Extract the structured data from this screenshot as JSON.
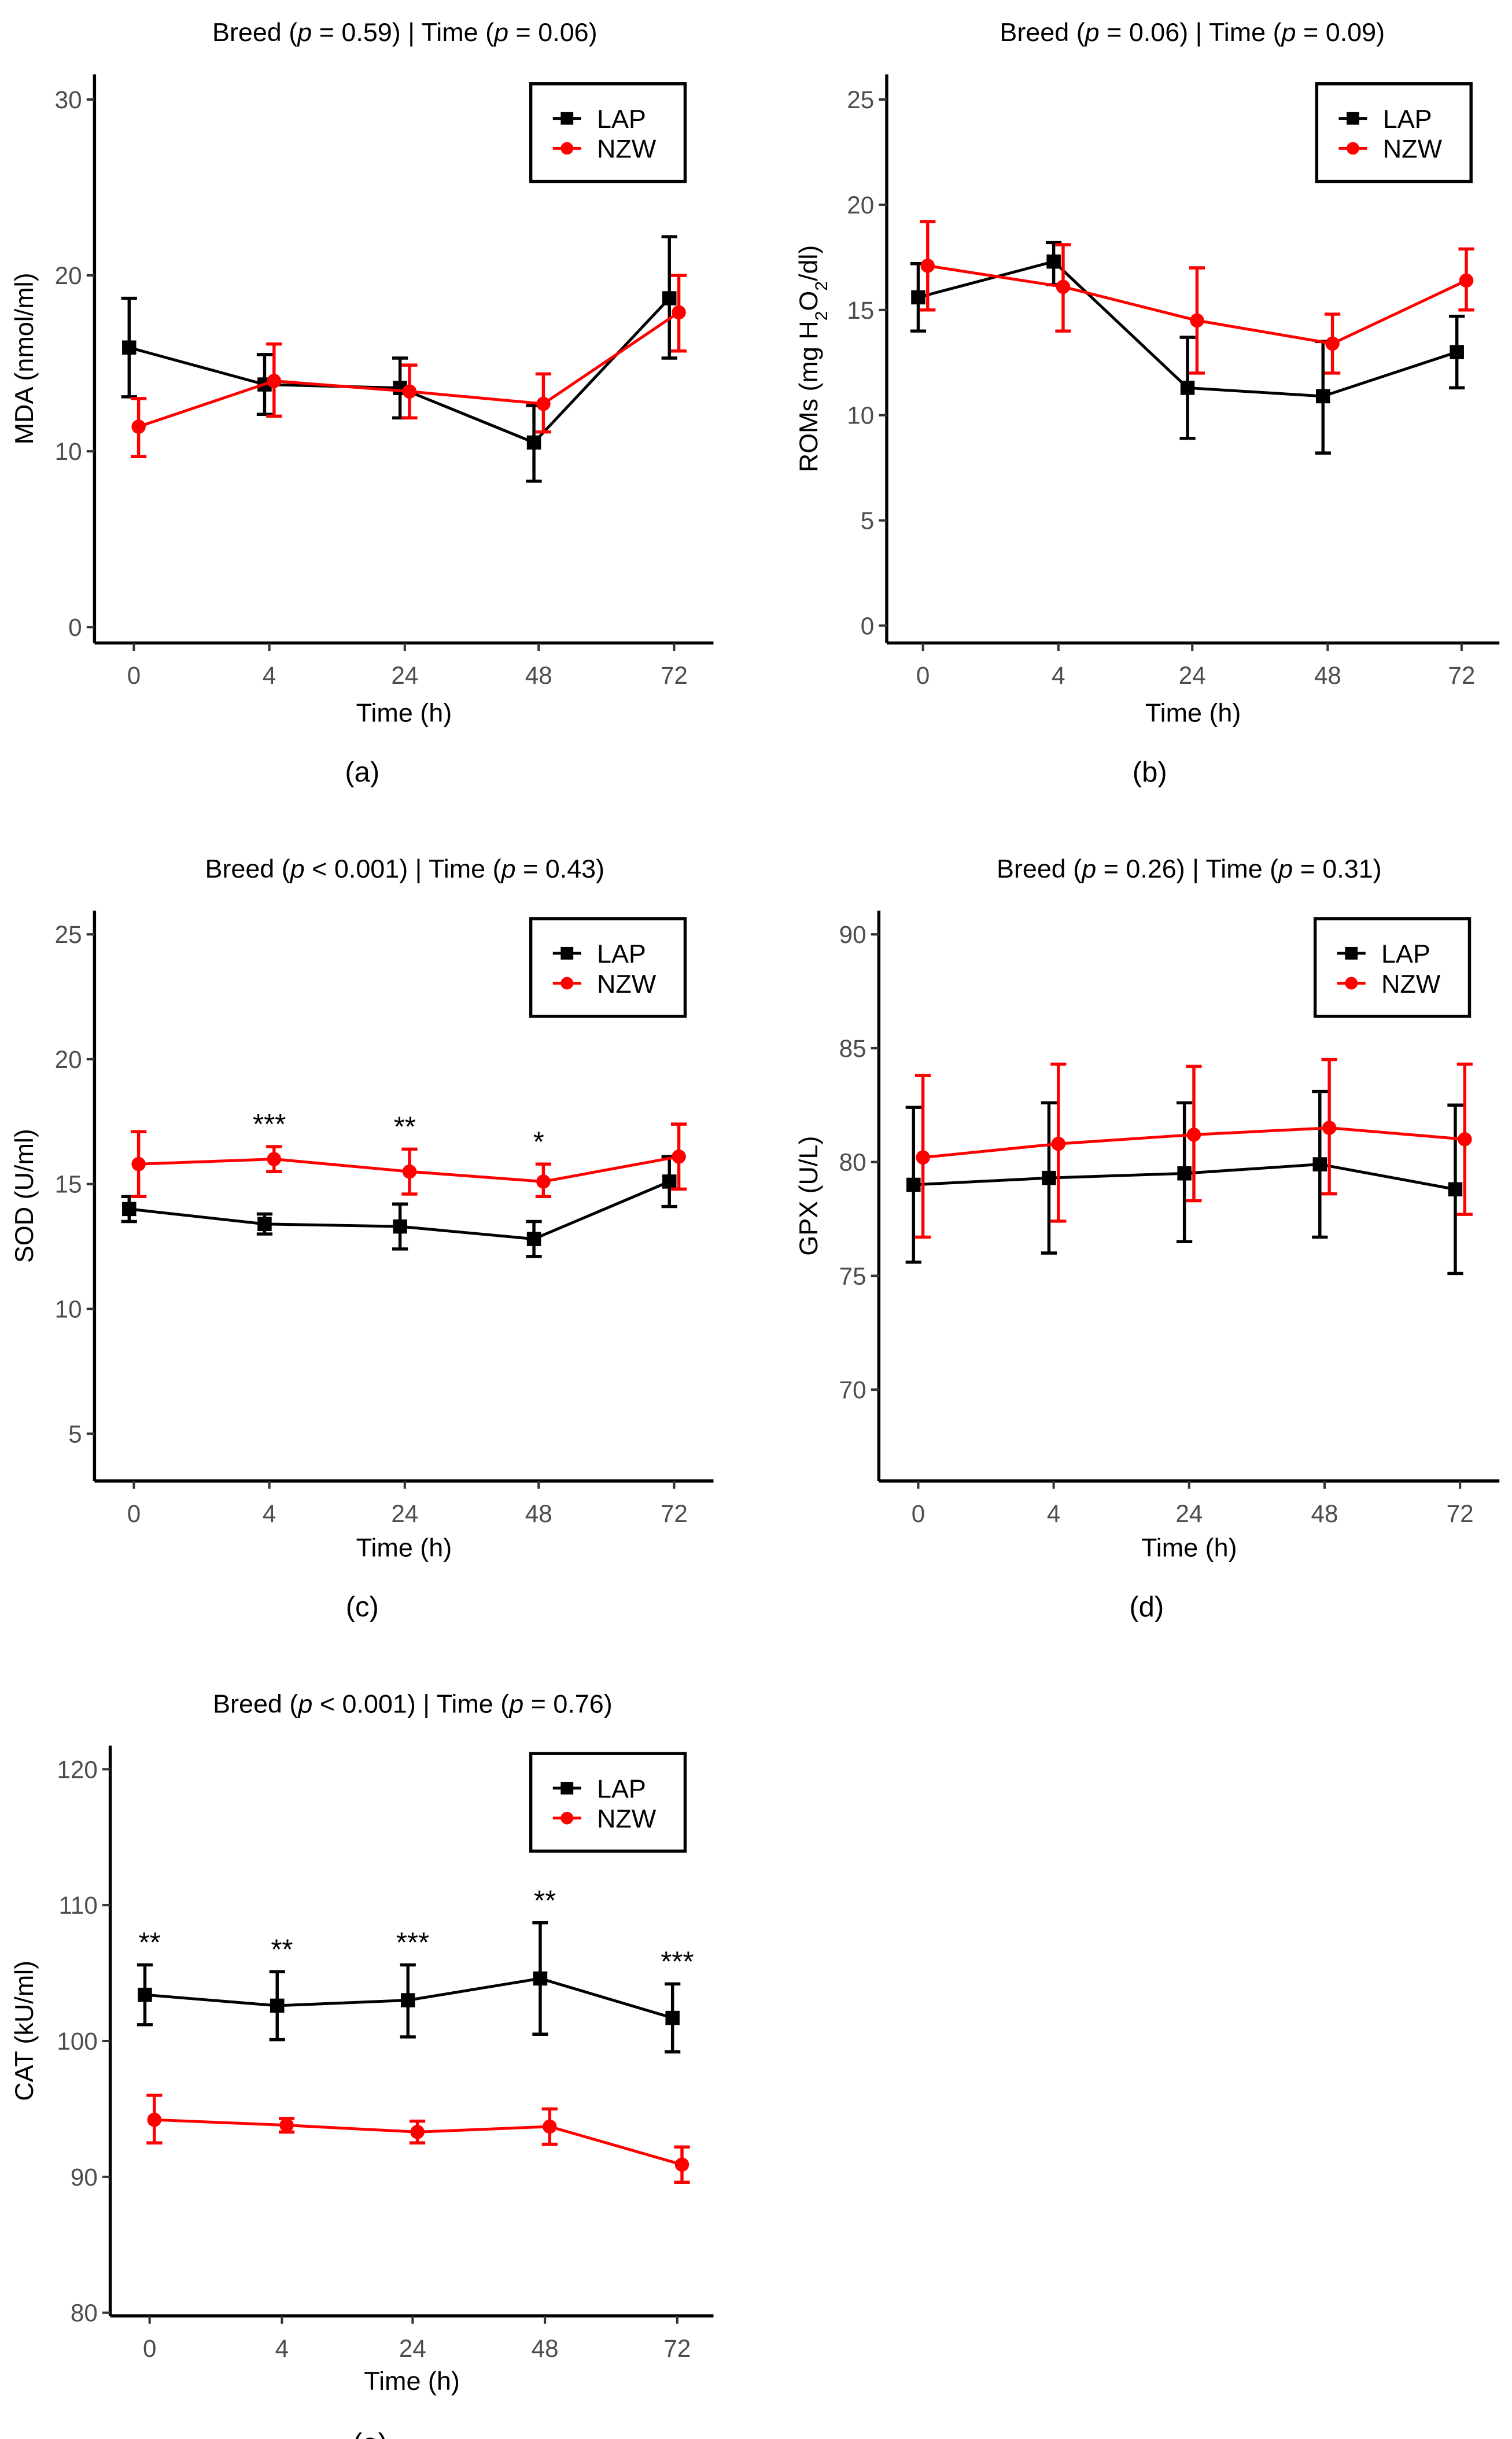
{
  "colors": {
    "LAP": "#000000",
    "NZW": "#ff0000",
    "tick_text": "#4d4d4d"
  },
  "chart_data": [
    {
      "type": "line",
      "panel_label": "(a)",
      "title_parts": [
        {
          "t": "Breed ("
        },
        {
          "t": "p",
          "i": true
        },
        {
          "t": " = 0.59) | Time ("
        },
        {
          "t": "p",
          "i": true
        },
        {
          "t": " = 0.06)"
        }
      ],
      "ylabel_parts": [
        {
          "t": "MDA  (nmol/ml)"
        }
      ],
      "xlabel": "Time (h)",
      "categories": [
        "0",
        "4",
        "24",
        "48",
        "72"
      ],
      "ylim": [
        0,
        30
      ],
      "yticks": [
        0,
        10,
        20,
        30
      ],
      "legend": [
        "LAP",
        "NZW"
      ],
      "legend_position": "top-right",
      "series": [
        {
          "name": "LAP",
          "values": [
            15.9,
            13.8,
            13.6,
            10.5,
            18.7
          ],
          "lower": [
            13.1,
            12.1,
            11.9,
            8.3,
            15.3
          ],
          "upper": [
            18.7,
            15.5,
            15.3,
            12.6,
            22.2
          ]
        },
        {
          "name": "NZW",
          "values": [
            11.4,
            14.0,
            13.4,
            12.7,
            17.9
          ],
          "lower": [
            9.7,
            12.0,
            11.9,
            11.1,
            15.7
          ],
          "upper": [
            13.0,
            16.1,
            14.9,
            14.4,
            20.0
          ]
        }
      ],
      "significance": [
        "",
        "",
        "",
        "",
        ""
      ]
    },
    {
      "type": "line",
      "panel_label": "(b)",
      "title_parts": [
        {
          "t": "Breed ("
        },
        {
          "t": "p",
          "i": true
        },
        {
          "t": " = 0.06) | Time ("
        },
        {
          "t": "p",
          "i": true
        },
        {
          "t": " = 0.09)"
        }
      ],
      "ylabel_parts": [
        {
          "t": "ROMs (mg H"
        },
        {
          "t": "2",
          "sub": true
        },
        {
          "t": "O"
        },
        {
          "t": "2",
          "sub": true
        },
        {
          "t": "/dl)"
        }
      ],
      "xlabel": "Time (h)",
      "categories": [
        "0",
        "4",
        "24",
        "48",
        "72"
      ],
      "ylim": [
        0,
        25
      ],
      "yticks": [
        0,
        5,
        10,
        15,
        20,
        25
      ],
      "legend": [
        "LAP",
        "NZW"
      ],
      "legend_position": "top-right",
      "series": [
        {
          "name": "LAP",
          "values": [
            15.6,
            17.3,
            11.3,
            10.9,
            13.0
          ],
          "lower": [
            14.0,
            16.2,
            8.9,
            8.2,
            11.3
          ],
          "upper": [
            17.2,
            18.2,
            13.7,
            13.5,
            14.7
          ]
        },
        {
          "name": "NZW",
          "values": [
            17.1,
            16.1,
            14.5,
            13.4,
            16.4
          ],
          "lower": [
            15.0,
            14.0,
            12.0,
            12.0,
            15.0
          ],
          "upper": [
            19.2,
            18.1,
            17.0,
            14.8,
            17.9
          ]
        }
      ],
      "significance": [
        "",
        "",
        "",
        "",
        ""
      ]
    },
    {
      "type": "line",
      "panel_label": "(c)",
      "title_parts": [
        {
          "t": "Breed ("
        },
        {
          "t": "p",
          "i": true
        },
        {
          "t": " < 0.001) | Time ("
        },
        {
          "t": "p",
          "i": true
        },
        {
          "t": " = 0.43)"
        }
      ],
      "ylabel_parts": [
        {
          "t": "SOD (U/ml)"
        }
      ],
      "xlabel": "Time (h)",
      "categories": [
        "0",
        "4",
        "24",
        "48",
        "72"
      ],
      "ylim": [
        4,
        26
      ],
      "yticks": [
        5,
        10,
        15,
        20,
        25
      ],
      "legend": [
        "LAP",
        "NZW"
      ],
      "legend_position": "top-right",
      "series": [
        {
          "name": "LAP",
          "values": [
            14.0,
            13.4,
            13.3,
            12.8,
            15.1
          ],
          "lower": [
            13.5,
            13.0,
            12.4,
            12.1,
            14.1
          ],
          "upper": [
            14.5,
            13.8,
            14.2,
            13.5,
            16.1
          ]
        },
        {
          "name": "NZW",
          "values": [
            15.8,
            16.0,
            15.5,
            15.1,
            16.1
          ],
          "lower": [
            14.5,
            15.5,
            14.6,
            14.5,
            14.8
          ],
          "upper": [
            17.1,
            16.5,
            16.4,
            15.8,
            17.4
          ]
        }
      ],
      "significance": [
        "",
        "***",
        "**",
        "*",
        ""
      ]
    },
    {
      "type": "line",
      "panel_label": "(d)",
      "title_parts": [
        {
          "t": "Breed ("
        },
        {
          "t": "p",
          "i": true
        },
        {
          "t": " = 0.26) | Time ("
        },
        {
          "t": "p",
          "i": true
        },
        {
          "t": " = 0.31)"
        }
      ],
      "ylabel_parts": [
        {
          "t": "GPX (U/L)"
        }
      ],
      "xlabel": "Time (h)",
      "categories": [
        "0",
        "4",
        "24",
        "48",
        "72"
      ],
      "ylim": [
        69,
        91
      ],
      "yticks": [
        70,
        75,
        80,
        85,
        90
      ],
      "legend": [
        "LAP",
        "NZW"
      ],
      "legend_position": "top-right",
      "series": [
        {
          "name": "LAP",
          "values": [
            79.0,
            79.3,
            79.5,
            79.9,
            78.8
          ],
          "lower": [
            75.6,
            76.0,
            76.5,
            76.7,
            75.1
          ],
          "upper": [
            82.4,
            82.6,
            82.6,
            83.1,
            82.5
          ]
        },
        {
          "name": "NZW",
          "values": [
            80.2,
            80.8,
            81.2,
            81.5,
            81.0
          ],
          "lower": [
            76.7,
            77.4,
            78.3,
            78.6,
            77.7
          ],
          "upper": [
            83.8,
            84.3,
            84.2,
            84.5,
            84.3
          ]
        }
      ],
      "significance": [
        "",
        "",
        "",
        "",
        ""
      ]
    },
    {
      "type": "line",
      "panel_label": "(e)",
      "title_parts": [
        {
          "t": "Breed ("
        },
        {
          "t": "p",
          "i": true
        },
        {
          "t": " < 0.001) | Time ("
        },
        {
          "t": "p",
          "i": true
        },
        {
          "t": " = 0.76)"
        }
      ],
      "ylabel_parts": [
        {
          "t": "CAT (kU/ml)"
        }
      ],
      "xlabel": "Time (h)",
      "categories": [
        "0",
        "4",
        "24",
        "48",
        "72"
      ],
      "ylim": [
        80,
        121
      ],
      "yticks": [
        80,
        90,
        100,
        110,
        120
      ],
      "legend": [
        "LAP",
        "NZW"
      ],
      "legend_position": "top-right",
      "series": [
        {
          "name": "LAP",
          "values": [
            103.4,
            102.6,
            103.0,
            104.6,
            101.7
          ],
          "lower": [
            101.2,
            100.1,
            100.3,
            100.5,
            99.2
          ],
          "upper": [
            105.6,
            105.1,
            105.6,
            108.7,
            104.2
          ]
        },
        {
          "name": "NZW",
          "values": [
            94.2,
            93.8,
            93.3,
            93.7,
            90.9
          ],
          "lower": [
            92.5,
            93.3,
            92.5,
            92.4,
            89.6
          ],
          "upper": [
            96.0,
            94.3,
            94.1,
            95.0,
            92.2
          ]
        }
      ],
      "significance": [
        "**",
        "**",
        "***",
        "**",
        "***"
      ]
    }
  ]
}
